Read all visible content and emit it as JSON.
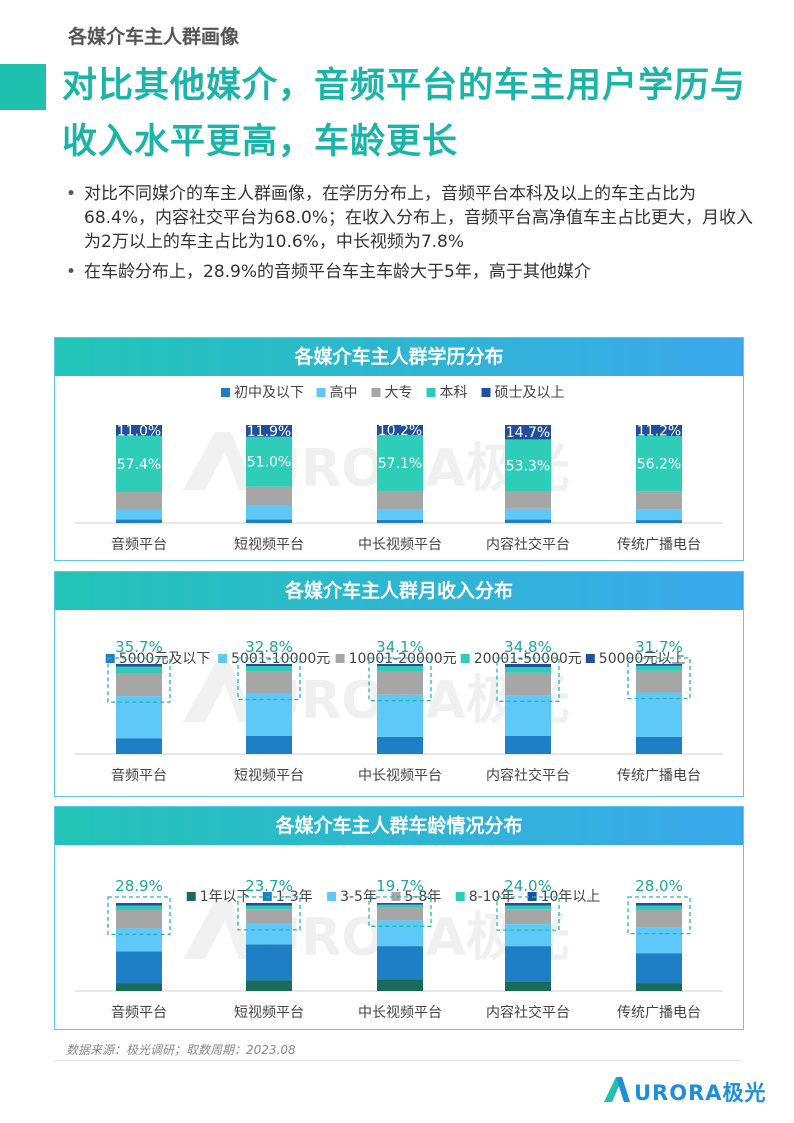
{
  "page": {
    "section_label": "各媒介车主人群画像",
    "title": "对比其他媒介，音频平台的车主用户学历与收入水平更高，车龄更长",
    "bullets": [
      "对比不同媒介的车主人群画像，在学历分布上，音频平台本科及以上的车主占比为68.4%，内容社交平台为68.0%；在收入分布上，音频平台高净值车主占比更大，月收入为2万以上的车主占比为10.6%，中长视频为7.8%",
      "在车龄分布上，28.9%的音频平台车主车龄大于5年，高于其他媒介"
    ],
    "source": "数据来源：极光调研；取数周期：2023.08",
    "watermark": "URORA极光",
    "logo_text": "URORA极光"
  },
  "chart_data": [
    {
      "type": "bar",
      "stacked": true,
      "title": "各媒介车主人群学历分布",
      "categories": [
        "音频平台",
        "短视频平台",
        "中长视频平台",
        "内容社交平台",
        "传统广播电台"
      ],
      "series": [
        {
          "name": "初中及以下",
          "color": "#1f7fc4",
          "values": [
            3.5,
            3.5,
            3.2,
            3.5,
            3.0
          ]
        },
        {
          "name": "高中",
          "color": "#5ec8f8",
          "values": [
            9.8,
            14.3,
            10.2,
            11.0,
            10.5
          ]
        },
        {
          "name": "大专",
          "color": "#a6a6a6",
          "values": [
            18.3,
            19.3,
            19.3,
            17.5,
            19.1
          ]
        },
        {
          "name": "本科",
          "color": "#2ecdb8",
          "values": [
            57.4,
            51.0,
            57.1,
            53.3,
            56.2
          ]
        },
        {
          "name": "硕士及以上",
          "color": "#1f4f9e",
          "values": [
            11.0,
            11.9,
            10.2,
            14.7,
            11.2
          ]
        }
      ],
      "labels": {
        "本科": [
          "57.4%",
          "51.0%",
          "57.1%",
          "53.3%",
          "56.2%"
        ],
        "硕士及以上": [
          "11.0%",
          "11.9%",
          "10.2%",
          "14.7%",
          "11.2%"
        ]
      },
      "ylim": [
        0,
        100
      ],
      "legend": "top"
    },
    {
      "type": "bar",
      "stacked": true,
      "title": "各媒介车主人群月收入分布",
      "categories": [
        "音频平台",
        "短视频平台",
        "中长视频平台",
        "内容社交平台",
        "传统广播电台"
      ],
      "series": [
        {
          "name": "5000元及以下",
          "color": "#1f7fc4",
          "values": [
            17.5,
            20.0,
            19.0,
            20.0,
            19.0
          ]
        },
        {
          "name": "5001-10000元",
          "color": "#5ec8f8",
          "values": [
            46.8,
            47.2,
            46.9,
            45.2,
            49.3
          ]
        },
        {
          "name": "10001-20000元",
          "color": "#a6a6a6",
          "values": [
            25.1,
            24.6,
            26.3,
            25.0,
            24.2
          ]
        },
        {
          "name": "20001-50000元",
          "color": "#2ecdb8",
          "values": [
            7.6,
            5.8,
            5.5,
            6.3,
            5.5
          ]
        },
        {
          "name": "50000元以上",
          "color": "#1f4f9e",
          "values": [
            3.0,
            2.4,
            2.3,
            3.5,
            2.0
          ]
        }
      ],
      "highlight": [
        "35.7%",
        "32.8%",
        "34.1%",
        "34.8%",
        "31.7%"
      ],
      "ylim": [
        0,
        100
      ],
      "legend": "top"
    },
    {
      "type": "bar",
      "stacked": true,
      "title": "各媒介车主人群车龄情况分布",
      "categories": [
        "音频平台",
        "短视频平台",
        "中长视频平台",
        "内容社交平台",
        "传统广播电台"
      ],
      "series": [
        {
          "name": "1年以下",
          "color": "#1a6b5a",
          "values": [
            9.0,
            12.0,
            13.0,
            11.0,
            9.0
          ]
        },
        {
          "name": "1-3年",
          "color": "#1f7fc4",
          "values": [
            36.0,
            41.0,
            38.0,
            40.0,
            34.0
          ]
        },
        {
          "name": "3-5年",
          "color": "#5ec8f8",
          "values": [
            26.1,
            23.3,
            29.3,
            25.0,
            29.0
          ]
        },
        {
          "name": "5-8年",
          "color": "#a6a6a6",
          "values": [
            20.9,
            16.7,
            14.7,
            17.0,
            20.0
          ]
        },
        {
          "name": "8-10年",
          "color": "#2ecdb8",
          "values": [
            5.0,
            4.0,
            3.0,
            4.0,
            5.0
          ]
        },
        {
          "name": "10年以上",
          "color": "#1f4f9e",
          "values": [
            3.0,
            3.0,
            2.0,
            3.0,
            3.0
          ]
        }
      ],
      "highlight": [
        "28.9%",
        "23.7%",
        "19.7%",
        "24.0%",
        "28.0%"
      ],
      "ylim": [
        0,
        100
      ],
      "legend": "top"
    }
  ]
}
